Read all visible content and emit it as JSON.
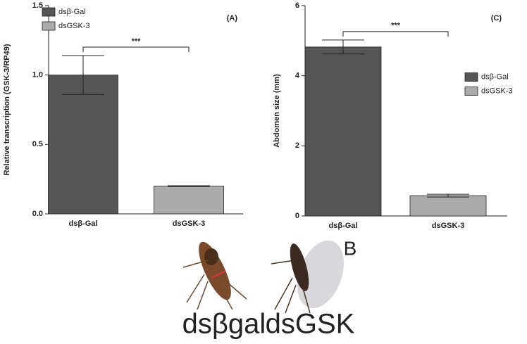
{
  "chart_data": [
    {
      "type": "bar",
      "annotation": "(A)",
      "ylabel": "Relative transcription (GSK-3/RP49)",
      "categories": [
        "dsβ-Gal",
        "dsGSK-3"
      ],
      "values": [
        1.0,
        0.2
      ],
      "errors": [
        0.14,
        0.003
      ],
      "colors": [
        "#555555",
        "#ababab"
      ],
      "significance": "***",
      "ylim": [
        0,
        1.5
      ],
      "yticks": [
        {
          "value": 0,
          "label": "0.0"
        },
        0.5,
        {
          "value": 1,
          "label": "1.0"
        },
        1.5
      ],
      "legend": {
        "labels": [
          "dsβ-Gal",
          "dsGSK-3"
        ],
        "position": "upper left"
      }
    },
    {
      "type": "bar",
      "annotation": "(C)",
      "ylabel": "Abdomen size (mm)",
      "categories": [
        "dsβ-Gal",
        "dsGSK-3"
      ],
      "values": [
        4.82,
        0.58
      ],
      "errors": [
        0.2,
        0.04
      ],
      "colors": [
        "#555555",
        "#ababab"
      ],
      "significance": "***",
      "ylim": [
        0,
        6
      ],
      "yticks": [
        0,
        2,
        4,
        6
      ],
      "legend": {
        "labels": [
          "dsβ-Gal",
          "dsGSK-3"
        ],
        "position": "center right"
      }
    }
  ],
  "panel_label": "B",
  "image_captions": [
    "dsβgal",
    "dsGSK"
  ]
}
